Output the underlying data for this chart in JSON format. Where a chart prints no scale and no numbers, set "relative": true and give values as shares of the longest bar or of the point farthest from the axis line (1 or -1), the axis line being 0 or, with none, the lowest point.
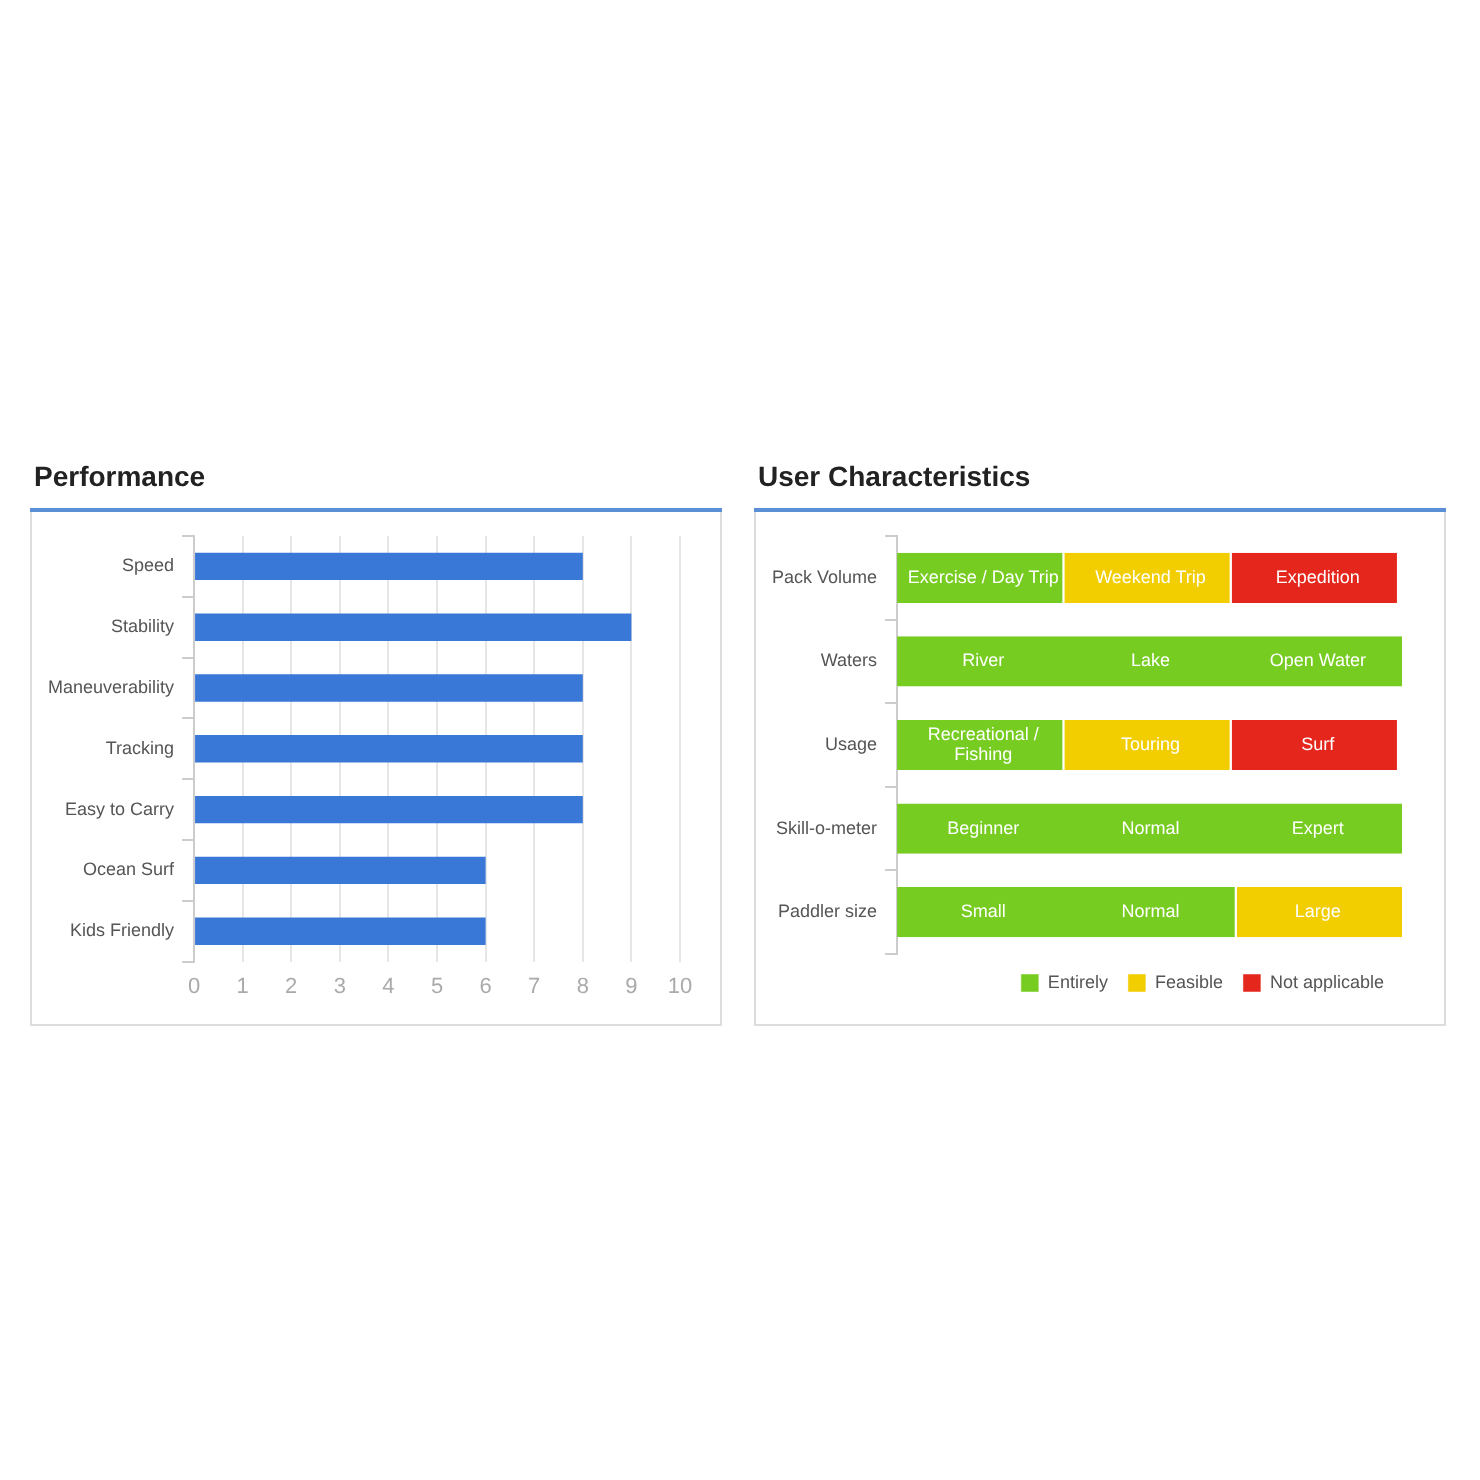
{
  "chart_data": [
    {
      "type": "bar",
      "title": "Performance",
      "orientation": "horizontal",
      "categories": [
        "Speed",
        "Stability",
        "Maneuverability",
        "Tracking",
        "Easy to Carry",
        "Ocean Surf",
        "Kids Friendly"
      ],
      "values": [
        8,
        9,
        8,
        8,
        8,
        6,
        6
      ],
      "color": "#3a78d8",
      "xlim": [
        0,
        10
      ],
      "xticks": [
        0,
        1,
        2,
        3,
        4,
        5,
        6,
        7,
        8,
        9,
        10
      ],
      "grid": "x"
    },
    {
      "type": "bar",
      "title": "User Characteristics",
      "orientation": "horizontal",
      "stacked": true,
      "relative": true,
      "legend": "bottom right",
      "categories": [
        "Pack Volume",
        "Waters",
        "Usage",
        "Skill-o-meter",
        "Paddler size"
      ],
      "series": [
        {
          "name": "Entirely",
          "color": "#77cc22",
          "values": [
            0.33,
            1,
            0.33,
            1,
            0.67
          ]
        },
        {
          "name": "Feasible",
          "color": "#f2cd00",
          "values": [
            0.33,
            null,
            0.33,
            null,
            0.33
          ]
        },
        {
          "name": "Not applicable",
          "color": "#e5261d",
          "values": [
            0.33,
            null,
            0.33,
            null,
            null
          ]
        }
      ],
      "annotations": [
        {
          "text": "Exercise / Day Trip",
          "x": 0.17,
          "y": "Pack Volume"
        },
        {
          "text": "Weekend Trip",
          "x": 0.5,
          "y": "Pack Volume"
        },
        {
          "text": "Expedition",
          "x": 0.83,
          "y": "Pack Volume"
        },
        {
          "text": "River",
          "x": 0.17,
          "y": "Waters"
        },
        {
          "text": "Lake",
          "x": 0.5,
          "y": "Waters"
        },
        {
          "text": "Open Water",
          "x": 0.83,
          "y": "Waters"
        },
        {
          "text": "Recreational / Fishing",
          "x": 0.17,
          "y": "Usage"
        },
        {
          "text": "Touring",
          "x": 0.5,
          "y": "Usage"
        },
        {
          "text": "Surf",
          "x": 0.83,
          "y": "Usage"
        },
        {
          "text": "Beginner",
          "x": 0.17,
          "y": "Skill-o-meter"
        },
        {
          "text": "Normal",
          "x": 0.5,
          "y": "Skill-o-meter"
        },
        {
          "text": "Expert",
          "x": 0.83,
          "y": "Skill-o-meter"
        },
        {
          "text": "Small",
          "x": 0.17,
          "y": "Paddler size"
        },
        {
          "text": "Normal",
          "x": 0.5,
          "y": "Paddler size"
        },
        {
          "text": "Large",
          "x": 0.83,
          "y": "Paddler size"
        }
      ]
    }
  ]
}
